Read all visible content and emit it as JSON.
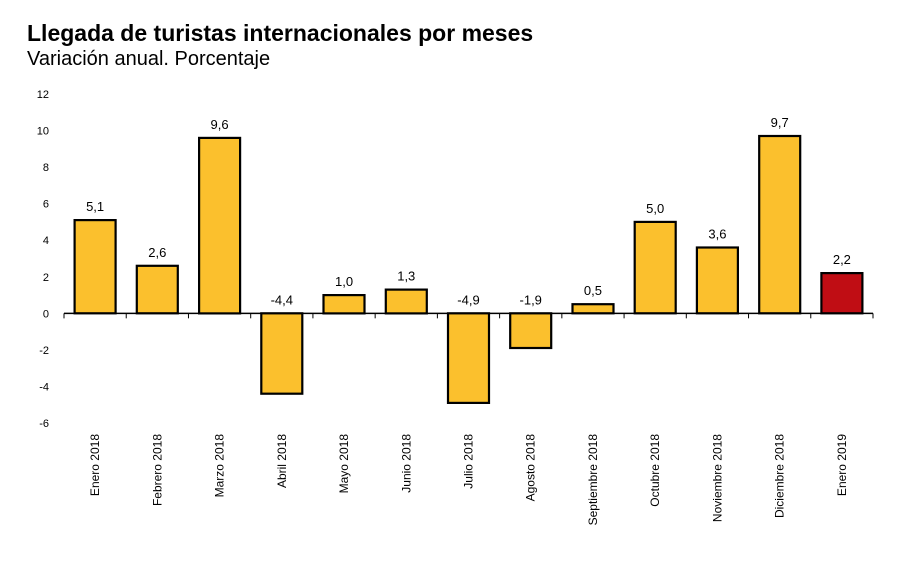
{
  "title": "Llegada de turistas internacionales por meses",
  "subtitle": "Variación anual. Porcentaje",
  "colors": {
    "bar": "#FBC02D",
    "highlight": "#C00D14",
    "stroke": "#000000"
  },
  "chart_data": {
    "type": "bar",
    "title": "Llegada de turistas internacionales por meses",
    "subtitle": "Variación anual. Porcentaje",
    "categories": [
      "Enero 2018",
      "Febrero 2018",
      "Marzo 2018",
      "Abril 2018",
      "Mayo 2018",
      "Junio 2018",
      "Julio 2018",
      "Agosto 2018",
      "Septiembre 2018",
      "Octubre 2018",
      "Noviembre 2018",
      "Diciembre 2018",
      "Enero 2019"
    ],
    "values": [
      5.1,
      2.6,
      9.6,
      -4.4,
      1.0,
      1.3,
      -4.9,
      -1.9,
      0.5,
      5.0,
      3.6,
      9.7,
      2.2
    ],
    "value_labels": [
      "5,1",
      "2,6",
      "9,6",
      "-4,4",
      "1,0",
      "1,3",
      "-4,9",
      "-1,9",
      "0,5",
      "5,0",
      "3,6",
      "9,7",
      "2,2"
    ],
    "highlight_index": 12,
    "ylim": [
      -6,
      12
    ],
    "yticks": [
      12,
      10,
      8,
      6,
      4,
      2,
      0,
      -2,
      -4,
      -6
    ],
    "xlabel": "",
    "ylabel": "",
    "grid": false,
    "legend": "none"
  }
}
